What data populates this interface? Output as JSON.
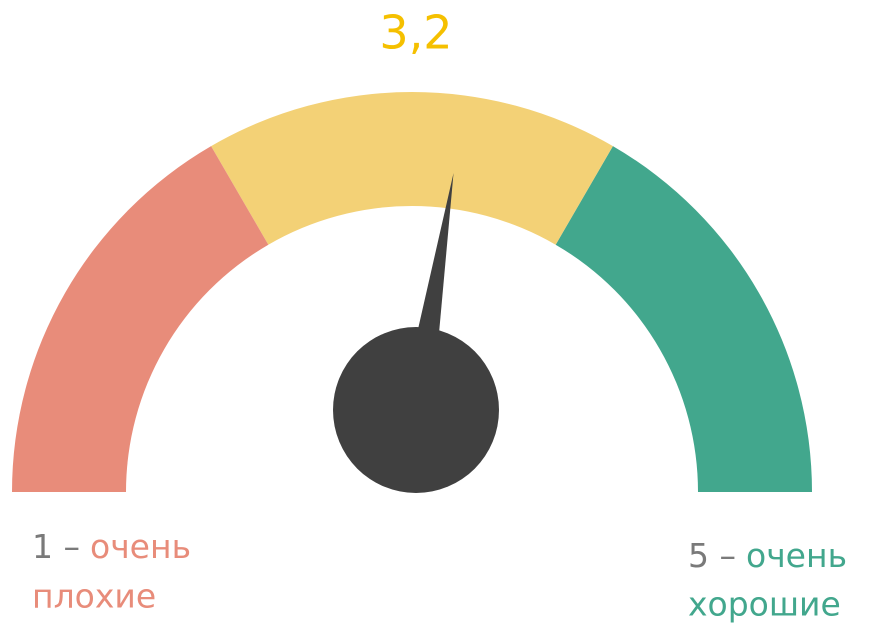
{
  "chart_data": {
    "type": "gauge",
    "value": 3.2,
    "value_label": "3,2",
    "value_color": "#f5c000",
    "ylim": [
      1,
      5
    ],
    "bands": [
      {
        "from": 1,
        "to": 2.33,
        "color": "#e88c7a"
      },
      {
        "from": 2.33,
        "to": 3.67,
        "color": "#f3d176"
      },
      {
        "from": 3.67,
        "to": 5,
        "color": "#42a78d"
      }
    ],
    "needle_color": "#404040",
    "min_label": {
      "number": "1 –",
      "line1": "очень",
      "line2": "плохие",
      "color": "#e88c7a"
    },
    "max_label": {
      "number": "5 –",
      "line1": "очень",
      "line2": "хорошие",
      "color": "#42a78d"
    }
  }
}
